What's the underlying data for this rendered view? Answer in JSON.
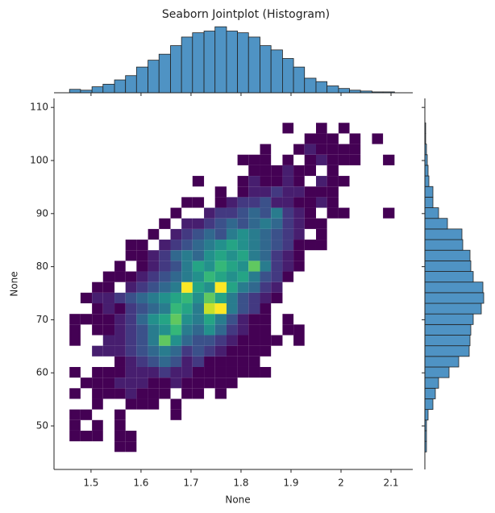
{
  "chart_data": [
    {
      "type": "heatmap",
      "title": "Seaborn Jointplot (Histogram)",
      "xlabel": "None",
      "ylabel": "None",
      "colormap": "viridis",
      "xlim": [
        1.426,
        2.1435
      ],
      "ylim": [
        41.8,
        111.7
      ],
      "xticks": [
        1.5,
        1.6,
        1.7,
        1.8,
        1.9,
        2.0,
        2.1
      ],
      "yticks": [
        50,
        60,
        70,
        80,
        90,
        100,
        110
      ],
      "x_bins": [
        1.457,
        1.479,
        1.502,
        1.524,
        1.547,
        1.569,
        1.591,
        1.614,
        1.636,
        1.659,
        1.681,
        1.703,
        1.726,
        1.748,
        1.771,
        1.793,
        1.815,
        1.838,
        1.86,
        1.883,
        1.905,
        1.927,
        1.95,
        1.972,
        1.995,
        2.017,
        2.039,
        2.062,
        2.084,
        2.107
      ],
      "y_bins": [
        45.1,
        47.1,
        49.1,
        51.1,
        53.1,
        55.1,
        57.1,
        59.1,
        61.1,
        63.1,
        65.1,
        67.1,
        69.1,
        71.1,
        73.1,
        75.1,
        77.1,
        79.1,
        81.1,
        83.1,
        85.1,
        87.1,
        89.1,
        91.1,
        93.1,
        95.1,
        97.1,
        99.1,
        101.1,
        103.1,
        105.1,
        107.1
      ],
      "counts": [
        [
          0,
          0,
          0,
          0,
          1,
          1,
          0,
          0,
          0,
          0,
          0,
          0,
          0,
          0,
          0,
          0,
          0,
          0,
          0,
          0,
          0,
          0,
          0,
          0,
          0,
          0,
          0,
          0,
          0
        ],
        [
          1,
          1,
          1,
          0,
          1,
          1,
          0,
          0,
          0,
          0,
          0,
          0,
          0,
          0,
          0,
          0,
          0,
          0,
          0,
          0,
          0,
          0,
          0,
          0,
          0,
          0,
          0,
          0,
          0
        ],
        [
          1,
          0,
          1,
          0,
          1,
          0,
          0,
          0,
          0,
          0,
          0,
          0,
          0,
          0,
          0,
          0,
          0,
          0,
          0,
          0,
          0,
          0,
          0,
          0,
          0,
          0,
          0,
          0,
          0
        ],
        [
          1,
          1,
          0,
          0,
          1,
          0,
          0,
          0,
          0,
          1,
          0,
          0,
          0,
          0,
          0,
          0,
          0,
          0,
          0,
          0,
          0,
          0,
          0,
          0,
          0,
          0,
          0,
          0,
          0
        ],
        [
          0,
          0,
          1,
          0,
          0,
          1,
          1,
          1,
          0,
          1,
          0,
          0,
          0,
          0,
          0,
          0,
          0,
          0,
          0,
          0,
          0,
          0,
          0,
          0,
          0,
          0,
          0,
          0,
          0
        ],
        [
          1,
          0,
          1,
          1,
          1,
          2,
          1,
          1,
          1,
          0,
          1,
          1,
          0,
          1,
          0,
          0,
          0,
          0,
          0,
          0,
          0,
          0,
          0,
          0,
          0,
          0,
          0,
          0,
          0
        ],
        [
          0,
          1,
          1,
          1,
          2,
          2,
          2,
          1,
          1,
          2,
          1,
          1,
          1,
          1,
          1,
          0,
          0,
          0,
          0,
          0,
          0,
          0,
          0,
          0,
          0,
          0,
          0,
          0,
          0
        ],
        [
          1,
          0,
          1,
          1,
          1,
          2,
          2,
          2,
          3,
          2,
          2,
          1,
          1,
          1,
          1,
          1,
          1,
          1,
          0,
          0,
          0,
          0,
          0,
          0,
          0,
          0,
          0,
          0,
          0
        ],
        [
          0,
          0,
          0,
          0,
          1,
          2,
          3,
          4,
          5,
          4,
          2,
          3,
          1,
          1,
          1,
          1,
          1,
          0,
          0,
          0,
          0,
          0,
          0,
          0,
          0,
          0,
          0,
          0,
          0
        ],
        [
          0,
          0,
          2,
          2,
          2,
          3,
          4,
          5,
          6,
          5,
          3,
          4,
          3,
          2,
          1,
          1,
          1,
          1,
          0,
          0,
          0,
          0,
          0,
          0,
          0,
          0,
          0,
          0,
          0
        ],
        [
          1,
          0,
          0,
          2,
          2,
          3,
          4,
          6,
          10,
          7,
          5,
          4,
          4,
          3,
          2,
          1,
          1,
          1,
          1,
          0,
          1,
          0,
          0,
          0,
          0,
          0,
          0,
          0,
          0
        ],
        [
          1,
          0,
          1,
          1,
          2,
          3,
          4,
          6,
          7,
          9,
          6,
          5,
          7,
          5,
          3,
          2,
          1,
          1,
          0,
          1,
          1,
          0,
          0,
          0,
          0,
          0,
          0,
          0,
          0
        ],
        [
          1,
          1,
          1,
          1,
          2,
          3,
          5,
          7,
          8,
          10,
          7,
          6,
          8,
          6,
          4,
          2,
          1,
          1,
          0,
          1,
          0,
          0,
          0,
          0,
          0,
          0,
          0,
          0,
          0
        ],
        [
          0,
          0,
          1,
          2,
          1,
          3,
          4,
          5,
          6,
          9,
          8,
          6,
          12,
          13,
          6,
          4,
          3,
          1,
          0,
          0,
          0,
          0,
          0,
          0,
          0,
          0,
          0,
          0,
          0
        ],
        [
          0,
          1,
          2,
          2,
          3,
          4,
          5,
          6,
          7,
          8,
          9,
          7,
          10,
          8,
          6,
          4,
          3,
          2,
          1,
          0,
          0,
          0,
          0,
          0,
          0,
          0,
          0,
          0,
          0
        ],
        [
          0,
          0,
          1,
          1,
          0,
          2,
          3,
          4,
          5,
          6,
          13,
          8,
          7,
          13,
          8,
          6,
          5,
          3,
          2,
          0,
          0,
          0,
          0,
          0,
          0,
          0,
          0,
          0,
          0
        ],
        [
          0,
          0,
          0,
          1,
          1,
          1,
          2,
          3,
          4,
          5,
          6,
          7,
          9,
          8,
          7,
          8,
          6,
          4,
          3,
          1,
          0,
          0,
          0,
          0,
          0,
          0,
          0,
          0,
          0
        ],
        [
          0,
          0,
          0,
          0,
          1,
          0,
          1,
          2,
          3,
          4,
          6,
          8,
          7,
          9,
          8,
          7,
          10,
          6,
          3,
          2,
          1,
          0,
          0,
          0,
          0,
          0,
          0,
          0,
          0
        ],
        [
          0,
          0,
          0,
          0,
          0,
          1,
          1,
          2,
          3,
          5,
          6,
          5,
          7,
          8,
          7,
          8,
          6,
          5,
          3,
          2,
          1,
          0,
          0,
          0,
          0,
          0,
          0,
          0,
          0
        ],
        [
          0,
          0,
          0,
          0,
          0,
          1,
          1,
          0,
          2,
          3,
          4,
          5,
          6,
          7,
          8,
          7,
          6,
          5,
          4,
          3,
          1,
          1,
          1,
          0,
          0,
          0,
          0,
          0,
          0
        ],
        [
          0,
          0,
          0,
          0,
          0,
          0,
          0,
          1,
          0,
          2,
          3,
          4,
          5,
          4,
          6,
          7,
          6,
          5,
          4,
          3,
          2,
          0,
          1,
          0,
          0,
          0,
          0,
          0,
          0
        ],
        [
          0,
          0,
          0,
          0,
          0,
          0,
          0,
          0,
          1,
          0,
          2,
          2,
          3,
          4,
          5,
          4,
          5,
          6,
          5,
          3,
          2,
          1,
          1,
          0,
          0,
          0,
          0,
          0,
          0
        ],
        [
          0,
          0,
          0,
          0,
          0,
          0,
          0,
          0,
          0,
          1,
          0,
          0,
          2,
          3,
          3,
          4,
          5,
          4,
          6,
          3,
          2,
          1,
          0,
          1,
          1,
          0,
          0,
          0,
          1
        ],
        [
          0,
          0,
          0,
          0,
          0,
          0,
          0,
          0,
          0,
          0,
          1,
          1,
          0,
          1,
          2,
          3,
          3,
          4,
          2,
          2,
          1,
          1,
          2,
          1,
          0,
          0,
          0,
          0,
          0
        ],
        [
          0,
          0,
          0,
          0,
          0,
          0,
          0,
          0,
          0,
          0,
          0,
          0,
          0,
          1,
          0,
          1,
          2,
          2,
          3,
          2,
          2,
          1,
          1,
          1,
          0,
          0,
          0,
          0,
          0
        ],
        [
          0,
          0,
          0,
          0,
          0,
          0,
          0,
          0,
          0,
          0,
          0,
          1,
          0,
          0,
          0,
          1,
          2,
          1,
          1,
          2,
          1,
          0,
          2,
          1,
          1,
          0,
          0,
          0,
          0
        ],
        [
          0,
          0,
          0,
          0,
          0,
          0,
          0,
          0,
          0,
          0,
          0,
          0,
          0,
          0,
          0,
          0,
          1,
          1,
          1,
          2,
          1,
          1,
          0,
          1,
          0,
          0,
          0,
          0,
          0
        ],
        [
          0,
          0,
          0,
          0,
          0,
          0,
          0,
          0,
          0,
          0,
          0,
          0,
          0,
          0,
          0,
          1,
          1,
          1,
          0,
          1,
          0,
          1,
          2,
          1,
          1,
          1,
          0,
          0,
          1
        ],
        [
          0,
          0,
          0,
          0,
          0,
          0,
          0,
          0,
          0,
          0,
          0,
          0,
          0,
          0,
          0,
          0,
          0,
          1,
          0,
          0,
          1,
          2,
          1,
          1,
          1,
          1,
          0,
          0,
          0
        ],
        [
          0,
          0,
          0,
          0,
          0,
          0,
          0,
          0,
          0,
          0,
          0,
          0,
          0,
          0,
          0,
          0,
          0,
          0,
          0,
          0,
          0,
          1,
          1,
          1,
          0,
          1,
          0,
          1,
          0
        ],
        [
          0,
          0,
          0,
          0,
          0,
          0,
          0,
          0,
          0,
          0,
          0,
          0,
          0,
          0,
          0,
          0,
          0,
          0,
          0,
          1,
          0,
          0,
          1,
          0,
          1,
          0,
          0,
          0,
          0
        ]
      ]
    },
    {
      "type": "histogram",
      "color": "#4f93c4",
      "ylim": [
        0,
        80
      ],
      "bins": [
        1.457,
        1.479,
        1.502,
        1.524,
        1.547,
        1.569,
        1.591,
        1.614,
        1.636,
        1.659,
        1.681,
        1.703,
        1.726,
        1.748,
        1.771,
        1.793,
        1.815,
        1.838,
        1.86,
        1.883,
        1.905,
        1.927,
        1.95,
        1.972,
        1.995,
        2.017,
        2.039,
        2.062,
        2.084,
        2.107
      ],
      "values": [
        4,
        3,
        7,
        10,
        15,
        20,
        30,
        38,
        45,
        55,
        65,
        70,
        72,
        77,
        72,
        70,
        65,
        55,
        50,
        40,
        30,
        17,
        13,
        8,
        5,
        3,
        2,
        1,
        1
      ]
    },
    {
      "type": "histogram-horizontal",
      "color": "#4f93c4",
      "xlim": [
        0,
        80
      ],
      "bins": [
        45.1,
        47.1,
        49.1,
        51.1,
        53.1,
        55.1,
        57.1,
        59.1,
        61.1,
        63.1,
        65.1,
        67.1,
        69.1,
        71.1,
        73.1,
        75.1,
        77.1,
        79.1,
        81.1,
        83.1,
        85.1,
        87.1,
        89.1,
        91.1,
        93.1,
        95.1,
        97.1,
        99.1,
        101.1,
        103.1,
        105.1,
        107.1
      ],
      "values": [
        2,
        2,
        2,
        4,
        10,
        13,
        17,
        30,
        42,
        55,
        56,
        57,
        60,
        70,
        73,
        72,
        60,
        57,
        56,
        47,
        46,
        28,
        17,
        10,
        10,
        5,
        4,
        3,
        2,
        1,
        1
      ]
    }
  ]
}
